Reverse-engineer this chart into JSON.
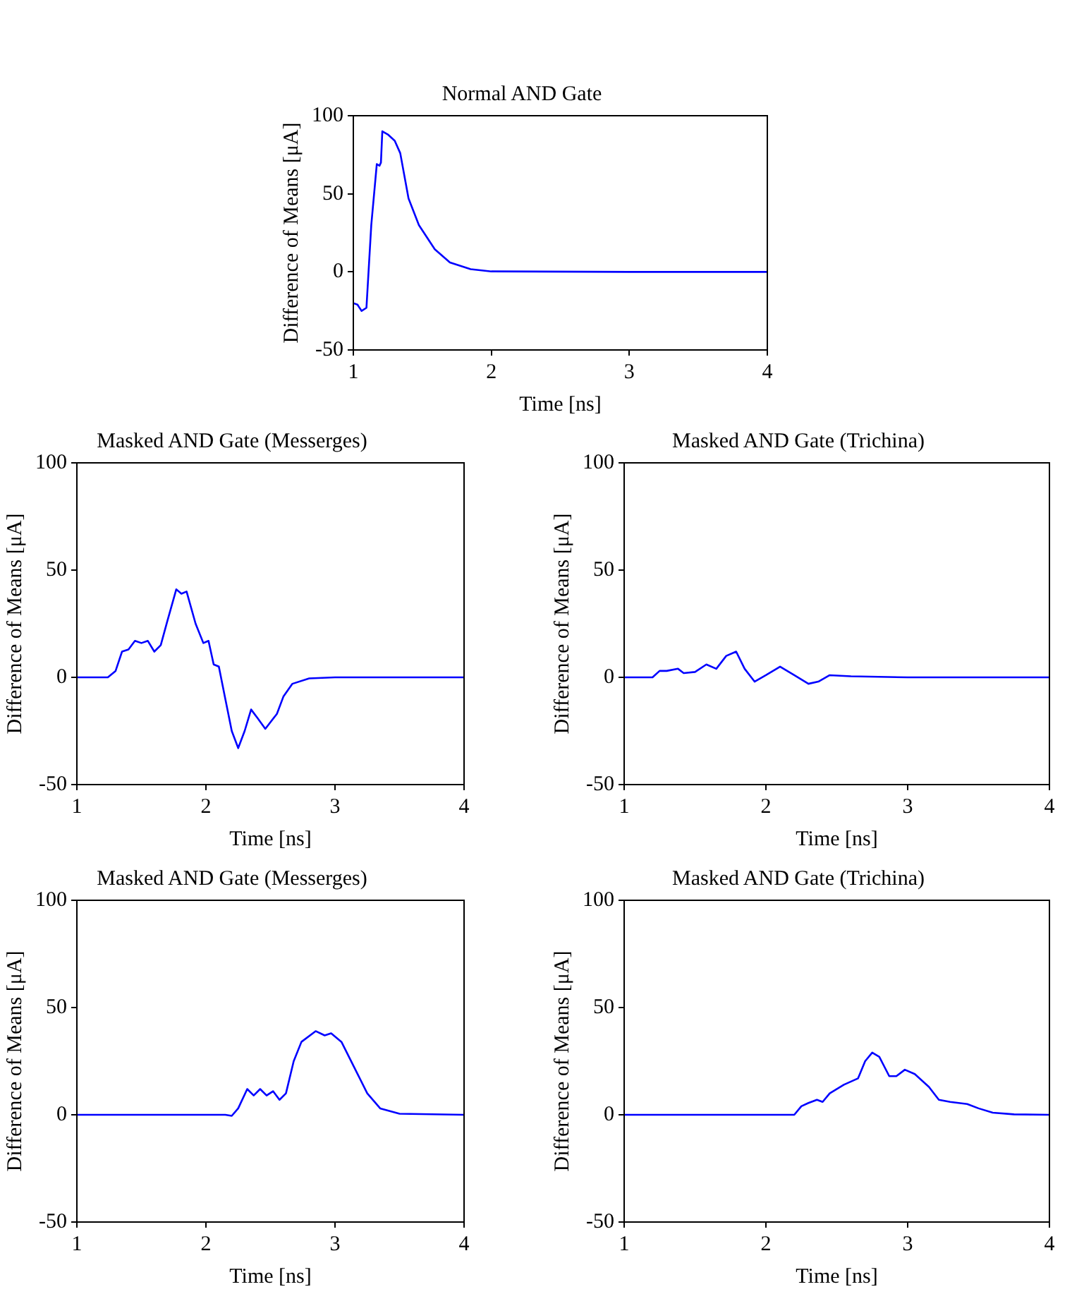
{
  "chart_data": [
    {
      "type": "line",
      "title": "Normal AND Gate",
      "xlabel": "Time [ns]",
      "ylabel": "Difference of Means [μA]",
      "xlim": [
        1,
        4
      ],
      "ylim": [
        -50,
        100
      ],
      "xticks": [
        1,
        2,
        3,
        4
      ],
      "yticks": [
        -50,
        0,
        50,
        100
      ],
      "x": [
        1,
        1.03,
        1.06,
        1.095,
        1.13,
        1.17,
        1.19,
        1.2,
        1.21,
        1.25,
        1.3,
        1.34,
        1.4,
        1.475,
        1.59,
        1.7,
        1.85,
        2,
        3,
        4
      ],
      "series": [
        {
          "color": "#0000ff",
          "values": [
            -20,
            -21,
            -25,
            -23,
            30,
            69,
            68,
            70,
            90,
            88,
            84,
            76,
            47,
            30,
            14.5,
            6,
            1.7,
            0.3,
            0,
            0
          ]
        }
      ]
    },
    {
      "type": "line",
      "title": "Masked AND Gate (Messerges)",
      "xlabel": "Time [ns]",
      "ylabel": "Difference of Means [μA]",
      "xlim": [
        1,
        4
      ],
      "ylim": [
        -50,
        100
      ],
      "xticks": [
        1,
        2,
        3,
        4
      ],
      "yticks": [
        -50,
        0,
        50,
        100
      ],
      "x": [
        1,
        1.24,
        1.3,
        1.35,
        1.4,
        1.45,
        1.5,
        1.55,
        1.6,
        1.65,
        1.7,
        1.77,
        1.81,
        1.85,
        1.92,
        1.98,
        2.02,
        2.06,
        2.1,
        2.15,
        2.2,
        2.25,
        2.3,
        2.35,
        2.4,
        2.46,
        2.55,
        2.6,
        2.67,
        2.8,
        3,
        4
      ],
      "series": [
        {
          "color": "#0000ff",
          "values": [
            0,
            0,
            3,
            12,
            13,
            17,
            16,
            17,
            12,
            15,
            26,
            41,
            39,
            40,
            25,
            16,
            17,
            6,
            5,
            -10,
            -25,
            -33,
            -25,
            -15,
            -19,
            -24,
            -17,
            -9,
            -3,
            -0.5,
            0,
            0
          ]
        }
      ]
    },
    {
      "type": "line",
      "title": "Masked AND Gate (Trichina)",
      "xlabel": "Time [ns]",
      "ylabel": "Difference of Means [μA]",
      "xlim": [
        1,
        4
      ],
      "ylim": [
        -50,
        100
      ],
      "xticks": [
        1,
        2,
        3,
        4
      ],
      "yticks": [
        -50,
        0,
        50,
        100
      ],
      "x": [
        1,
        1.2,
        1.25,
        1.3,
        1.38,
        1.42,
        1.5,
        1.58,
        1.65,
        1.72,
        1.79,
        1.85,
        1.92,
        2,
        2.1,
        2.2,
        2.3,
        2.37,
        2.45,
        2.6,
        3,
        4
      ],
      "series": [
        {
          "color": "#0000ff",
          "values": [
            0,
            0,
            3,
            3,
            4,
            2,
            2.5,
            6,
            4,
            10,
            12,
            4,
            -2,
            1,
            5,
            1,
            -3,
            -2,
            1,
            0.5,
            0,
            0
          ]
        }
      ]
    },
    {
      "type": "line",
      "title": "Masked AND Gate (Messerges)",
      "xlabel": "Time [ns]",
      "ylabel": "Difference of Means [μA]",
      "xlim": [
        1,
        4
      ],
      "ylim": [
        -50,
        100
      ],
      "xticks": [
        1,
        2,
        3,
        4
      ],
      "yticks": [
        -50,
        0,
        50,
        100
      ],
      "x": [
        1,
        2.15,
        2.2,
        2.25,
        2.32,
        2.37,
        2.42,
        2.47,
        2.52,
        2.57,
        2.62,
        2.68,
        2.74,
        2.85,
        2.92,
        2.97,
        3.05,
        3.15,
        3.25,
        3.35,
        3.5,
        4
      ],
      "series": [
        {
          "color": "#0000ff",
          "values": [
            0,
            0,
            -0.5,
            3,
            12,
            9,
            12,
            9,
            11,
            7,
            10,
            25,
            34,
            39,
            37,
            38,
            34,
            22,
            10,
            3,
            0.5,
            0
          ]
        }
      ]
    },
    {
      "type": "line",
      "title": "Masked AND Gate (Trichina)",
      "xlabel": "Time [ns]",
      "ylabel": "Difference of Means [μA]",
      "xlim": [
        1,
        4
      ],
      "ylim": [
        -50,
        100
      ],
      "xticks": [
        1,
        2,
        3,
        4
      ],
      "yticks": [
        -50,
        0,
        50,
        100
      ],
      "x": [
        1,
        2.2,
        2.25,
        2.3,
        2.36,
        2.4,
        2.45,
        2.55,
        2.65,
        2.7,
        2.75,
        2.8,
        2.87,
        2.92,
        2.98,
        3.05,
        3.15,
        3.22,
        3.3,
        3.42,
        3.5,
        3.6,
        3.75,
        4
      ],
      "series": [
        {
          "color": "#0000ff",
          "values": [
            0,
            0,
            4,
            5.5,
            7,
            6,
            10,
            14,
            17,
            25,
            29,
            27,
            18,
            18,
            21,
            19,
            13,
            7,
            6,
            5,
            3,
            1,
            0.2,
            0
          ]
        }
      ]
    }
  ]
}
